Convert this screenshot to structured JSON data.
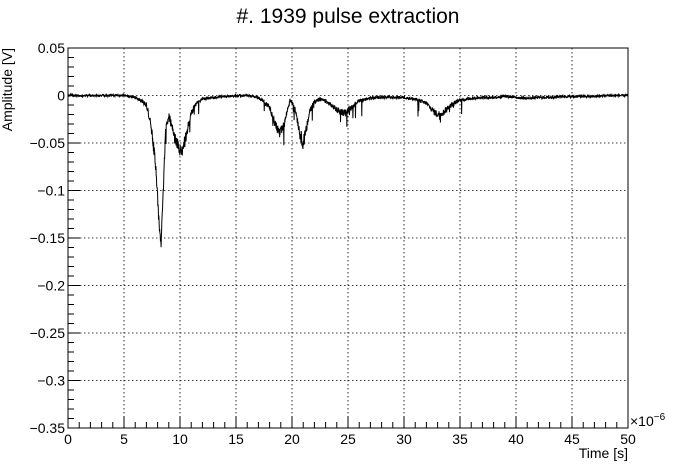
{
  "chart_data": {
    "type": "line",
    "title": "#. 1939 pulse extraction",
    "xlabel": "Time [s]",
    "ylabel": "Amplitude [V]",
    "x_exponent_label": "×10",
    "x_exponent_power": "−6",
    "xlim": [
      0,
      50
    ],
    "ylim": [
      -0.35,
      0.05
    ],
    "grid": true,
    "x_ticks": [
      0,
      5,
      10,
      15,
      20,
      25,
      30,
      35,
      40,
      45,
      50
    ],
    "x_tick_labels": [
      "0",
      "5",
      "10",
      "15",
      "20",
      "25",
      "30",
      "35",
      "40",
      "45",
      "50"
    ],
    "y_ticks": [
      0.05,
      0,
      -0.05,
      -0.1,
      -0.15,
      -0.2,
      -0.25,
      -0.3,
      -0.35
    ],
    "y_tick_labels": [
      "0.05",
      "0",
      "−0.05",
      "−0.1",
      "−0.15",
      "−0.2",
      "−0.25",
      "−0.3",
      "−0.35"
    ],
    "series": [
      {
        "x": [
          0,
          2,
          4,
          5,
          6,
          6.5,
          7,
          7.4,
          7.8,
          8.1,
          8.3,
          8.5,
          8.7,
          9.0,
          9.3,
          9.6,
          9.9,
          10.2,
          10.6,
          11.0,
          11.5,
          12.0,
          13.0,
          14.0,
          15.0,
          16.0,
          17.0,
          18.0,
          18.5,
          18.9,
          19.2,
          19.5,
          19.8,
          20.1,
          20.4,
          20.7,
          21.0,
          21.3,
          21.6,
          22.0,
          22.5,
          23.0,
          23.5,
          24.0,
          24.5,
          25.0,
          25.5,
          26.0,
          27.0,
          28.0,
          29.0,
          30.0,
          31.0,
          32.0,
          32.5,
          33.0,
          33.5,
          34.0,
          34.5,
          35.0,
          36.0,
          37.0,
          38.0,
          39.0,
          40.0,
          41.0,
          42.0,
          43.0,
          44.0,
          45.0,
          46.0,
          47.0,
          48.0,
          49.0,
          50.0
        ],
        "y": [
          0.0,
          0.0,
          0.0,
          0.0,
          -0.002,
          -0.005,
          -0.01,
          -0.03,
          -0.07,
          -0.13,
          -0.158,
          -0.1,
          -0.04,
          -0.02,
          -0.035,
          -0.045,
          -0.055,
          -0.06,
          -0.04,
          -0.018,
          -0.008,
          -0.004,
          -0.002,
          -0.001,
          0.0,
          0.0,
          -0.002,
          -0.012,
          -0.03,
          -0.04,
          -0.035,
          -0.02,
          -0.005,
          -0.008,
          -0.02,
          -0.04,
          -0.05,
          -0.035,
          -0.015,
          -0.006,
          -0.004,
          -0.006,
          -0.01,
          -0.015,
          -0.018,
          -0.016,
          -0.01,
          -0.005,
          -0.003,
          -0.002,
          -0.002,
          -0.002,
          -0.004,
          -0.008,
          -0.015,
          -0.02,
          -0.018,
          -0.012,
          -0.008,
          -0.005,
          -0.003,
          -0.002,
          -0.002,
          -0.001,
          -0.002,
          -0.003,
          -0.002,
          -0.002,
          -0.001,
          -0.001,
          -0.001,
          -0.001,
          0.0,
          0.0,
          0.0
        ]
      }
    ]
  }
}
